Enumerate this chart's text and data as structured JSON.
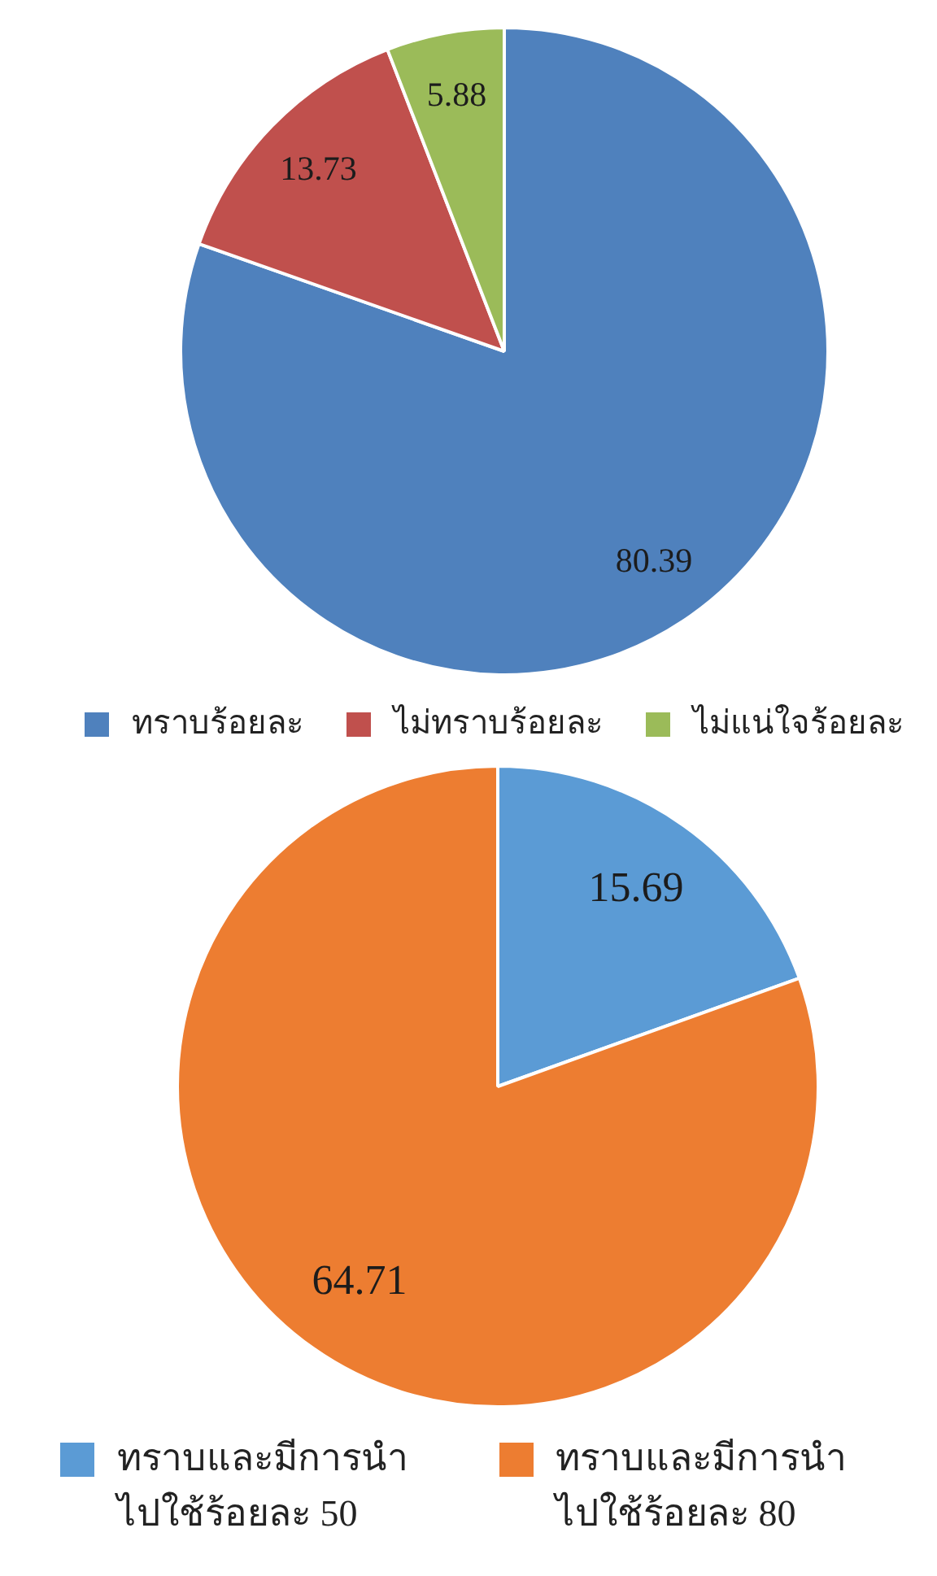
{
  "chart_data": [
    {
      "type": "pie",
      "categories": [
        "ทราบร้อยละ",
        "ไม่ทราบร้อยละ",
        "ไม่แน่ใจร้อยละ"
      ],
      "values": [
        80.39,
        13.73,
        5.88
      ],
      "colors": [
        "#4f81bd",
        "#c0504d",
        "#9bbb59"
      ],
      "data_labels": true,
      "legend": "bottom"
    },
    {
      "type": "pie",
      "categories": [
        "ทราบและมีการนำไปใช้ร้อยละ 50",
        "ทราบและมีการนำไปใช้ร้อยละ 80"
      ],
      "values": [
        15.69,
        64.71
      ],
      "colors": [
        "#5b9bd5",
        "#ed7d31"
      ],
      "data_labels": true,
      "legend": "bottom"
    }
  ]
}
